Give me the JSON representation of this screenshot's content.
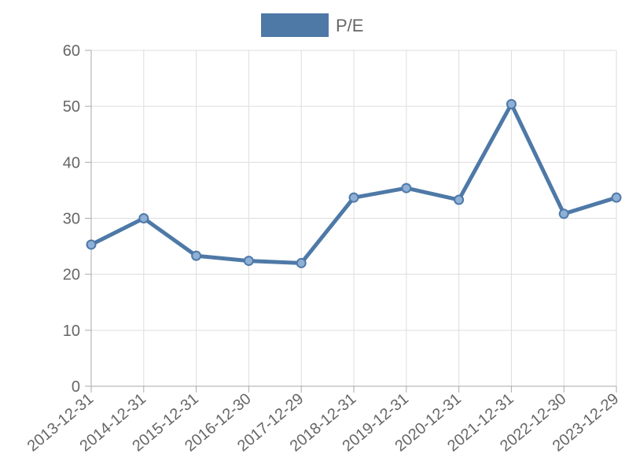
{
  "chart_data": {
    "type": "line",
    "categories": [
      "2013-12-31",
      "2014-12-31",
      "2015-12-31",
      "2016-12-30",
      "2017-12-29",
      "2018-12-31",
      "2019-12-31",
      "2020-12-31",
      "2021-12-31",
      "2022-12-30",
      "2023-12-29"
    ],
    "series": [
      {
        "name": "P/E",
        "values": [
          25.3,
          30.0,
          23.3,
          22.4,
          22.0,
          33.7,
          35.4,
          33.3,
          50.4,
          30.8,
          33.7
        ],
        "color": "#4e79a7"
      }
    ],
    "ylim": [
      0,
      60
    ],
    "yticks": [
      0,
      10,
      20,
      30,
      40,
      50,
      60
    ],
    "grid": true,
    "legend_position": "top-center"
  }
}
